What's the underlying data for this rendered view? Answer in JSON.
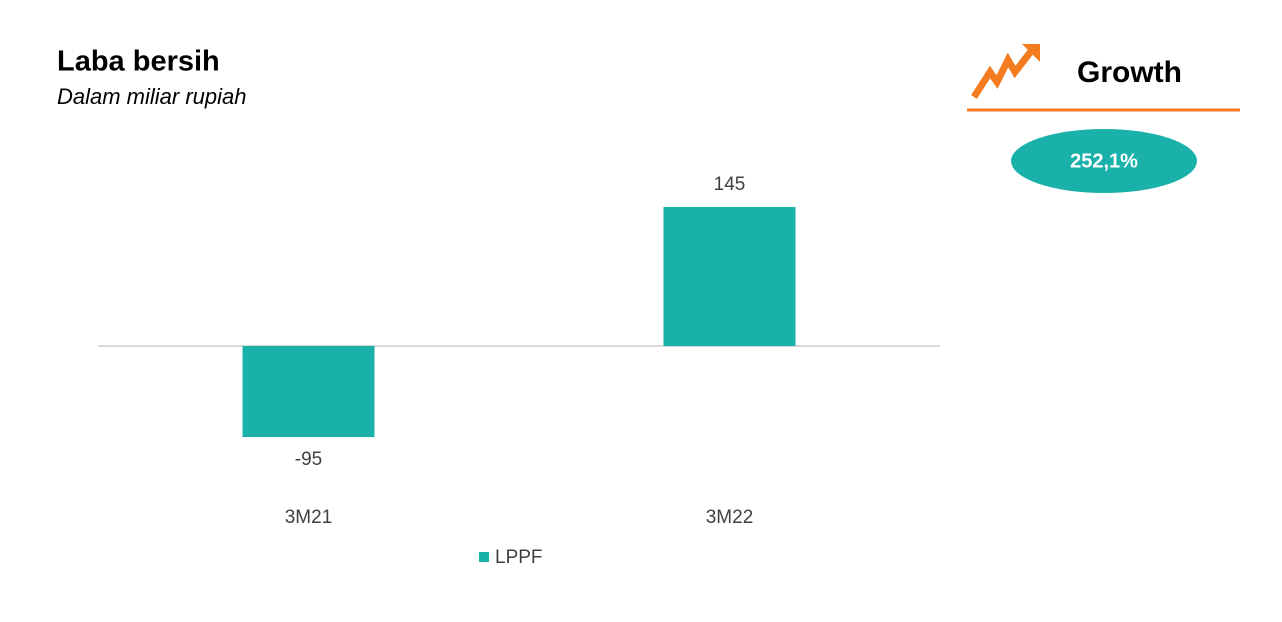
{
  "chart_data": {
    "type": "bar",
    "title": "Laba bersih",
    "subtitle": "Dalam miliar rupiah",
    "categories": [
      "3M21",
      "3M22"
    ],
    "series": [
      {
        "name": "LPPF",
        "color": "#1ab1ab",
        "values": [
          -95,
          145
        ]
      }
    ],
    "legend": "bottom"
  },
  "panel": {
    "title": "Growth",
    "value": "252,1%"
  }
}
